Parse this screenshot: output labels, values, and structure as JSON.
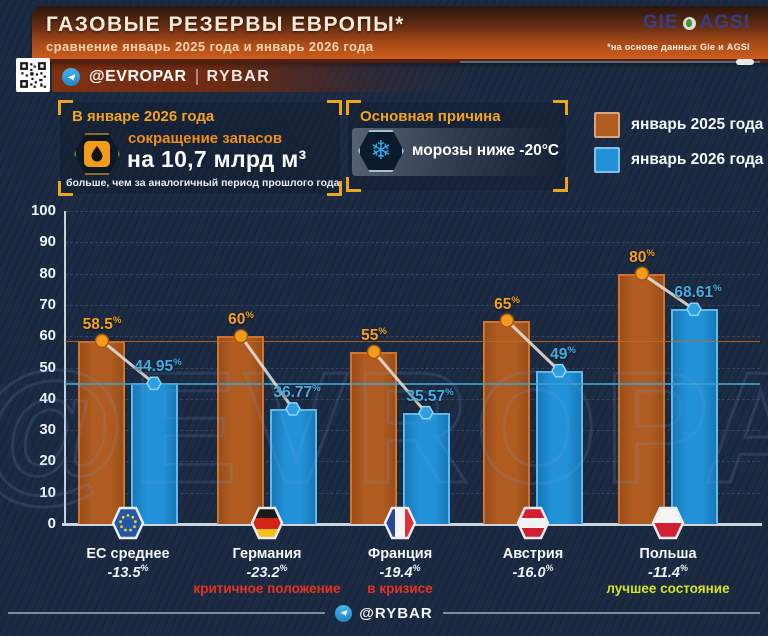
{
  "header": {
    "title": "ГАЗОВЫЕ РЕЗЕРВЫ ЕВРОПЫ*",
    "subtitle": "сравнение январь 2025 года и январь 2026 года",
    "source_note": "*на основе данных Gie и AGSI",
    "logo_gie": "GIE",
    "logo_agsi": "AGSI"
  },
  "channel_bar": {
    "evropar": "@EVROPAR",
    "rybar": "RYBAR"
  },
  "info_left": {
    "title": "В январе 2026 года",
    "line1": "сокращение запасов",
    "line2": "на 10,7 млрд м³",
    "line3": "больше, чем за аналогичный период прошлого года"
  },
  "info_right": {
    "title": "Основная причина",
    "text": "морозы ниже -20°C"
  },
  "legend": [
    {
      "label": "январь 2025 года",
      "color": "#b05c21"
    },
    {
      "label": "январь 2026 года",
      "color": "#2191d8"
    }
  ],
  "watermark": "@EVROPAR",
  "footer": {
    "handle": "@RYBAR"
  },
  "chart_data": {
    "type": "bar",
    "categories": [
      "ЕС среднее",
      "Германия",
      "Франция",
      "Австрия",
      "Польша"
    ],
    "flags": [
      "eu",
      "de",
      "fr",
      "at",
      "pl"
    ],
    "series": [
      {
        "name": "январь 2025 года",
        "color": "#f6a11f",
        "values": [
          58.5,
          60,
          55,
          65,
          80
        ]
      },
      {
        "name": "январь 2026 года",
        "color": "#47abe2",
        "values": [
          44.95,
          36.77,
          35.57,
          49,
          68.61
        ]
      }
    ],
    "value_suffix": "%",
    "change_labels": [
      "-13.5",
      "-23.2",
      "-19.4",
      "-16.0",
      "-11.4"
    ],
    "status_labels": [
      "",
      "критичное положение",
      "в кризисе",
      "",
      "лучшее состояние"
    ],
    "status_colors": [
      "",
      "#e73222",
      "#e73222",
      "",
      "#d6e322"
    ],
    "reference_lines": [
      {
        "value": 58.5,
        "color": "#c9661d"
      },
      {
        "value": 44.95,
        "color": "#3f9fca"
      }
    ],
    "ylim": [
      0,
      100
    ],
    "yticks": [
      0,
      10,
      20,
      30,
      40,
      50,
      60,
      70,
      80,
      90,
      100
    ],
    "grid": true,
    "legend_position": "top-right",
    "title": "ГАЗОВЫЕ РЕЗЕРВЫ ЕВРОПЫ*",
    "xlabel": "",
    "ylabel": ""
  }
}
